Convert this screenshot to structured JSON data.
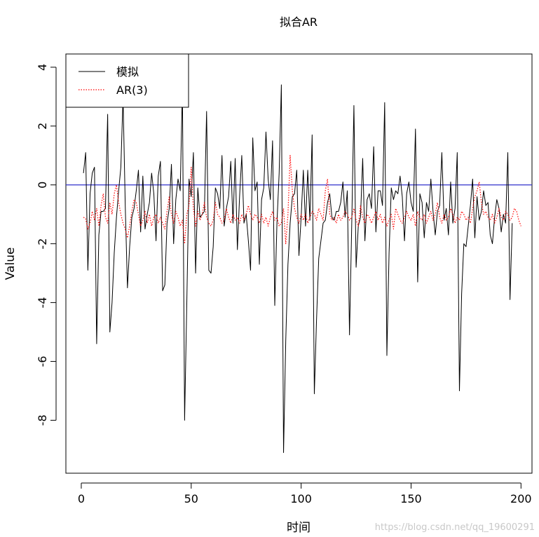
{
  "chart_data": {
    "type": "line",
    "title": "拟合AR",
    "xlabel": "时间",
    "ylabel": "Value",
    "xlim": [
      -7,
      205
    ],
    "ylim": [
      -9.8,
      4.45
    ],
    "xticks": [
      "0",
      "50",
      "100",
      "150",
      "200"
    ],
    "yticks": [
      "4",
      "2",
      "0",
      "-2",
      "-4",
      "-6",
      "-8"
    ],
    "legend_position": "top-left",
    "hline": {
      "y": 0,
      "color": "#3333cc"
    },
    "series": [
      {
        "name": "模拟",
        "color": "#000000",
        "style": "solid",
        "x_start": 1,
        "values": [
          0.4,
          1.1,
          -2.9,
          -0.3,
          0.4,
          0.6,
          -5.4,
          -1.7,
          -0.9,
          -0.9,
          -0.8,
          2.4,
          -5.0,
          -4.0,
          -2.3,
          -1.1,
          -0.2,
          0.6,
          3.0,
          -0.7,
          -3.5,
          -2.1,
          -1.1,
          -0.8,
          -0.2,
          0.5,
          -1.6,
          0.3,
          -1.5,
          -1.0,
          -0.6,
          0.4,
          -0.3,
          -1.9,
          0.3,
          0.8,
          -3.6,
          -3.4,
          -1.3,
          -0.8,
          0.7,
          -2.0,
          -0.5,
          0.2,
          -0.2,
          3.3,
          -8.0,
          -4.0,
          0.2,
          -0.4,
          1.1,
          -3.0,
          -0.1,
          -1.1,
          -1.0,
          -0.9,
          2.5,
          -2.9,
          -3.0,
          -2.1,
          -0.1,
          -0.3,
          -0.8,
          1.0,
          -1.4,
          -0.8,
          -0.4,
          0.8,
          -1.3,
          0.9,
          -2.2,
          -0.4,
          1.0,
          -1.3,
          -1.0,
          -1.9,
          -2.9,
          1.6,
          -0.2,
          0.1,
          -2.7,
          -0.5,
          -0.1,
          1.8,
          0.2,
          -0.5,
          1.5,
          -4.1,
          -1.3,
          0.4,
          3.4,
          -9.1,
          -5.3,
          -2.7,
          -1.3,
          -0.4,
          -0.3,
          0.5,
          -2.4,
          -1.1,
          0.5,
          -1.4,
          0.5,
          -1.2,
          1.7,
          -7.1,
          -4.6,
          -2.5,
          -1.9,
          -1.3,
          -1.2,
          -0.6,
          -0.3,
          -1.1,
          -1.2,
          -0.9,
          -0.9,
          -0.6,
          0.1,
          -1.1,
          -0.2,
          -5.1,
          -1.4,
          2.7,
          -2.8,
          -1.4,
          -1.1,
          0.9,
          -1.9,
          -0.5,
          -0.3,
          -0.8,
          1.3,
          -1.6,
          -0.2,
          -0.2,
          -0.7,
          2.8,
          -5.8,
          -2.3,
          -0.1,
          -0.5,
          -0.2,
          -0.3,
          0.3,
          -0.4,
          -1.9,
          -0.3,
          0.1,
          -0.6,
          -0.9,
          1.9,
          -3.3,
          -0.3,
          -0.6,
          -1.8,
          -0.6,
          -0.9,
          0.2,
          -0.9,
          -1.7,
          -0.9,
          -0.7,
          1.1,
          -1.2,
          -0.8,
          -1.7,
          0.1,
          -1.3,
          -0.8,
          1.1,
          -7.0,
          -3.7,
          -2.0,
          -2.1,
          -1.4,
          -0.7,
          0.2,
          -1.8,
          -0.4,
          -1.2,
          -0.9,
          -0.2,
          -0.7,
          -0.6,
          -1.7,
          -2.0,
          -1.1,
          -0.5,
          -0.8,
          -1.6,
          -1.0,
          -1.3,
          1.1,
          -3.9,
          -1.3
        ]
      },
      {
        "name": "AR(3)",
        "color": "#ff0000",
        "style": "dotted",
        "x_start": 1,
        "values": [
          -1.1,
          -1.15,
          -1.5,
          -1.3,
          -0.9,
          -1.2,
          -0.8,
          -1.4,
          -0.7,
          -0.3,
          -1.1,
          -1.3,
          -0.6,
          -1.0,
          -0.3,
          0.0,
          -0.6,
          -1.0,
          -1.3,
          -1.5,
          -1.8,
          -1.4,
          -0.9,
          -0.5,
          -0.6,
          -1.0,
          -1.4,
          -1.2,
          -0.9,
          -1.3,
          -1.0,
          -1.4,
          -1.1,
          -1.0,
          -1.3,
          -1.1,
          -1.3,
          -1.5,
          -0.9,
          -0.4,
          -1.0,
          -1.3,
          -0.9,
          -1.1,
          -1.4,
          -1.2,
          -2.0,
          -1.0,
          -0.7,
          0.6,
          -0.8,
          -1.4,
          -0.9,
          -1.2,
          -1.0,
          -0.6,
          -1.1,
          -1.3,
          -1.4,
          -1.2,
          -0.6,
          -1.0,
          -1.1,
          -1.3,
          -1.2,
          -0.8,
          -1.1,
          -1.3,
          -1.0,
          -1.2,
          -1.1,
          -1.3,
          -1.0,
          -1.2,
          -1.0,
          -0.7,
          -1.0,
          -1.2,
          -1.0,
          -1.1,
          -1.3,
          -1.0,
          -1.3,
          -1.1,
          -1.4,
          -1.1,
          -0.9,
          -1.2,
          -1.1,
          -1.4,
          -1.3,
          -0.8,
          -2.0,
          -1.0,
          1.0,
          -0.2,
          -0.8,
          -1.1,
          -1.3,
          -1.0,
          -1.2,
          -1.0,
          -1.3,
          -1.1,
          -0.9,
          -1.0,
          -1.2,
          -0.8,
          -1.0,
          -1.2,
          -0.2,
          0.2,
          -1.0,
          -1.2,
          -1.1,
          -1.3,
          -1.0,
          -1.2,
          -1.1,
          -0.9,
          -1.0,
          -1.2,
          -1.1,
          -0.8,
          -1.2,
          -1.4,
          -0.7,
          -1.1,
          -1.3,
          -1.0,
          -1.1,
          -1.3,
          -1.1,
          -0.9,
          -1.2,
          -1.0,
          -1.3,
          -1.1,
          -1.4,
          -1.2,
          -1.0,
          -1.5,
          -0.8,
          -1.0,
          -1.2,
          -1.3,
          -1.1,
          -0.9,
          -1.1,
          -1.2,
          -1.0,
          -1.4,
          -0.9,
          -1.1,
          -1.2,
          -1.0,
          -1.3,
          -1.1,
          -0.9,
          -1.2,
          -1.0,
          -0.6,
          -1.1,
          -1.3,
          -1.0,
          -1.2,
          -1.1,
          -0.8,
          -1.0,
          -1.3,
          -1.1,
          -1.2,
          -0.9,
          -1.0,
          -1.2,
          -1.1,
          -1.3,
          -0.8,
          -0.4,
          -0.2,
          0.1,
          -0.6,
          -1.0,
          -0.9,
          -1.1,
          -1.2,
          -1.0,
          -1.3,
          -1.1,
          -0.8,
          -1.1,
          -1.2,
          -0.9,
          -1.0,
          -1.2,
          -1.1,
          -0.8,
          -0.9,
          -1.2,
          -1.4
        ]
      }
    ]
  },
  "watermark": "https://blog.csdn.net/qq_19600291"
}
